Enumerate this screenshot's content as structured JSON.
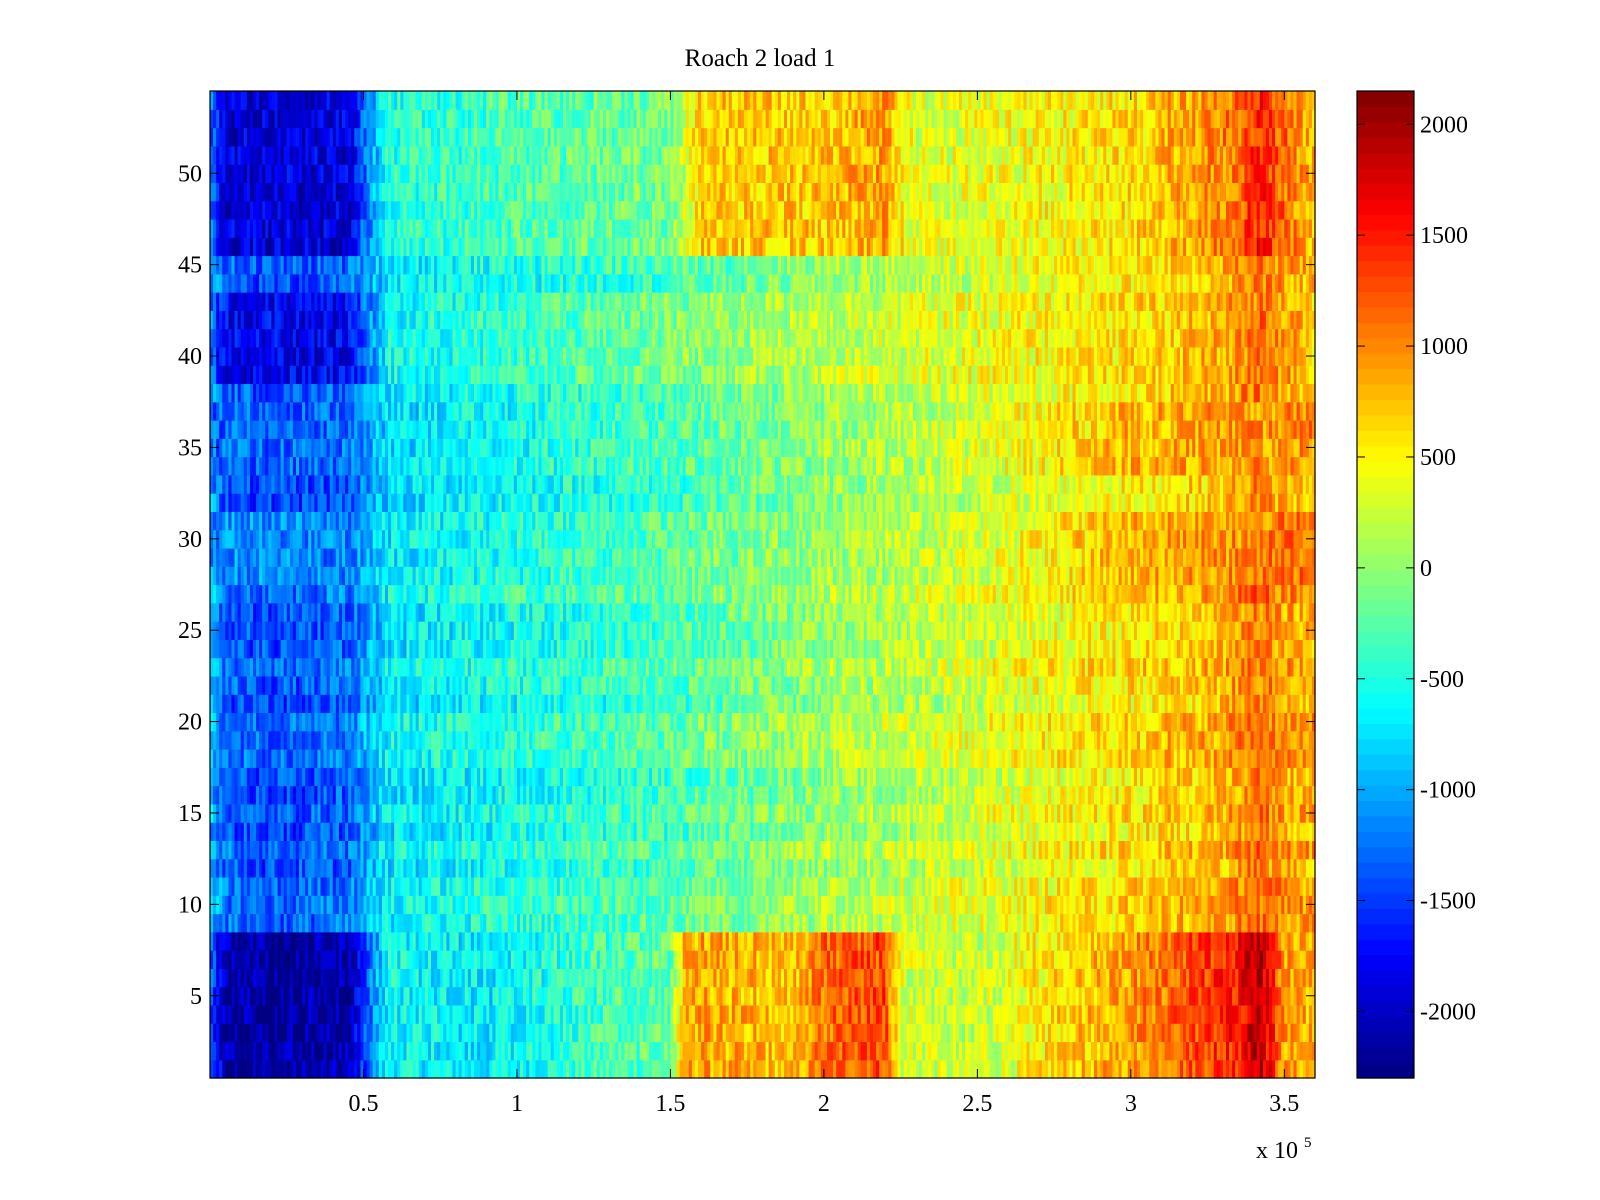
{
  "chart_data": {
    "type": "heatmap",
    "title": "Roach 2 load 1",
    "xlabel": "",
    "ylabel": "",
    "x_multiplier_label": "x 10",
    "x_multiplier_exponent": "5",
    "xlim": [
      0,
      3.6
    ],
    "ylim": [
      0.5,
      54.5
    ],
    "x_ticks": [
      0.5,
      1,
      1.5,
      2,
      2.5,
      3,
      3.5
    ],
    "x_tick_labels": [
      "0.5",
      "1",
      "1.5",
      "2",
      "2.5",
      "3",
      "3.5"
    ],
    "y_ticks": [
      5,
      10,
      15,
      20,
      25,
      30,
      35,
      40,
      45,
      50
    ],
    "y_tick_labels": [
      "5",
      "10",
      "15",
      "20",
      "25",
      "30",
      "35",
      "40",
      "45",
      "50"
    ],
    "colormap": "jet",
    "clim": [
      -2300,
      2150
    ],
    "colorbar_ticks": [
      2000,
      1500,
      1000,
      500,
      0,
      -500,
      -1000,
      -1500,
      -2000
    ],
    "colorbar_tick_labels": [
      "2000",
      "1500",
      "1000",
      "500",
      "0",
      "-500",
      "-1000",
      "-1500",
      "-2000"
    ],
    "rows": 54,
    "columns": 360,
    "grid": false,
    "value_profile_x": [
      0,
      0.05,
      0.2,
      0.45,
      0.58,
      0.9,
      1.5,
      2.0,
      2.5,
      3.0,
      3.3,
      3.4,
      3.5,
      3.6
    ],
    "value_profile_base": [
      -900,
      -1300,
      -1400,
      -1300,
      -700,
      -550,
      -300,
      50,
      300,
      600,
      800,
      1100,
      900,
      800
    ],
    "strong_row_bands": [
      {
        "rows": [
          1,
          8
        ],
        "values_x": [
          0,
          0.05,
          0.2,
          0.45,
          0.58,
          0.9,
          1.2,
          1.5,
          1.55,
          1.9,
          2.0,
          2.2,
          2.25,
          2.5,
          2.8,
          3.0,
          3.35,
          3.42,
          3.5,
          3.6
        ],
        "values": [
          -1300,
          -2100,
          -2200,
          -2100,
          -600,
          -700,
          -400,
          -200,
          900,
          700,
          1100,
          1300,
          300,
          200,
          700,
          900,
          1500,
          2000,
          900,
          800
        ]
      },
      {
        "rows": [
          39,
          43
        ],
        "values_x": [
          0,
          0.05,
          0.45,
          0.58,
          1.0,
          2.0,
          3.0,
          3.35,
          3.42,
          3.6
        ],
        "values": [
          -1200,
          -1800,
          -1800,
          -600,
          -400,
          200,
          600,
          900,
          1100,
          700
        ]
      },
      {
        "rows": [
          46,
          54
        ],
        "values_x": [
          0,
          0.05,
          0.45,
          0.58,
          1.0,
          1.5,
          1.6,
          2.0,
          2.2,
          2.3,
          3.0,
          3.35,
          3.42,
          3.6
        ],
        "values": [
          -1200,
          -1900,
          -1900,
          -500,
          -300,
          -100,
          700,
          700,
          900,
          300,
          600,
          1100,
          1500,
          700
        ]
      },
      {
        "rows": [
          34,
          37
        ],
        "values_x": [
          0,
          0.45,
          0.58,
          2.5,
          3.0,
          3.6
        ],
        "values": [
          -1300,
          -1300,
          -800,
          300,
          800,
          1000
        ]
      },
      {
        "rows": [
          28,
          31
        ],
        "values_x": [
          0,
          0.45,
          0.58,
          2.5,
          3.0,
          3.6
        ],
        "values": [
          -1100,
          -1200,
          -700,
          300,
          800,
          1100
        ]
      }
    ]
  }
}
